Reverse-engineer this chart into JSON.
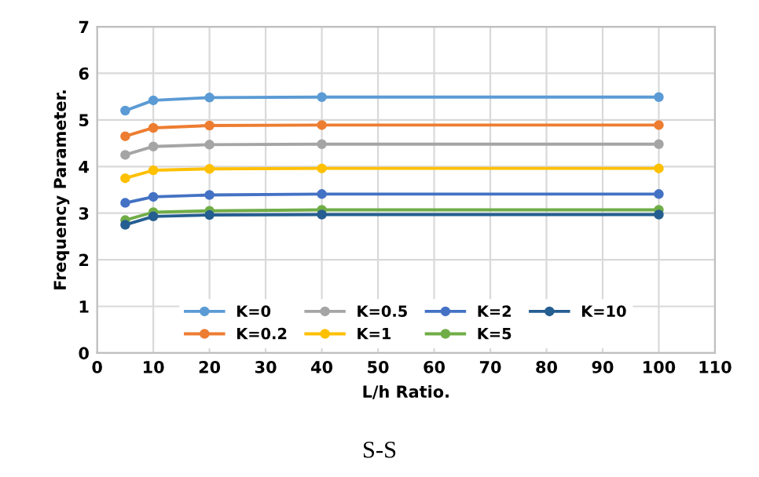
{
  "chart_data": {
    "type": "line",
    "xlabel": "L/h Ratio.",
    "ylabel": "Frequency Parameter.",
    "annotations": [
      "S-S"
    ],
    "x": [
      5,
      10,
      20,
      40,
      100
    ],
    "series": [
      {
        "name": "K=0",
        "color": "#5b9bd5",
        "values": [
          5.2,
          5.42,
          5.48,
          5.49,
          5.49
        ]
      },
      {
        "name": "K=0.2",
        "color": "#ed7d31",
        "values": [
          4.65,
          4.83,
          4.88,
          4.89,
          4.89
        ]
      },
      {
        "name": "K=0.5",
        "color": "#a5a5a5",
        "values": [
          4.25,
          4.43,
          4.47,
          4.48,
          4.48
        ]
      },
      {
        "name": "K=1",
        "color": "#ffc000",
        "values": [
          3.75,
          3.92,
          3.95,
          3.96,
          3.96
        ]
      },
      {
        "name": "K=2",
        "color": "#4472c4",
        "values": [
          3.22,
          3.35,
          3.39,
          3.41,
          3.41
        ]
      },
      {
        "name": "K=5",
        "color": "#70ad47",
        "values": [
          2.85,
          3.02,
          3.05,
          3.07,
          3.07
        ]
      },
      {
        "name": "K=10",
        "color": "#255e91",
        "values": [
          2.75,
          2.93,
          2.96,
          2.97,
          2.97
        ]
      }
    ],
    "xlim": [
      0,
      110
    ],
    "xticks": [
      0,
      10,
      20,
      30,
      40,
      50,
      60,
      70,
      80,
      90,
      100,
      110
    ],
    "ylim": [
      0,
      7
    ],
    "yticks": [
      0,
      1,
      2,
      3,
      4,
      5,
      6,
      7
    ],
    "grid": true,
    "legend": "bottom",
    "marker": "circle",
    "line_style": "solid"
  }
}
